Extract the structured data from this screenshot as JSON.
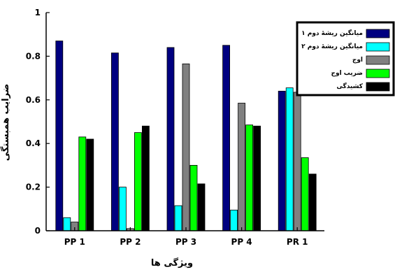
{
  "chart_data": {
    "type": "bar",
    "xlabel": "ویژگی ها",
    "ylabel": "ضرایب همبستگی",
    "ylim": [
      0,
      1
    ],
    "yticks": [
      "0",
      "0.2",
      "0.4",
      "0.6",
      "0.8",
      "1"
    ],
    "categories": [
      "PP 1",
      "PP 2",
      "PP 3",
      "PP 4",
      "PR 1"
    ],
    "grid": false,
    "legend_position": "top-right",
    "series": [
      {
        "name": "میانگین ریشهٔ دوم ۱",
        "color": "#000080",
        "values": [
          0.87,
          0.815,
          0.84,
          0.85,
          0.64
        ]
      },
      {
        "name": "میانگین ریشهٔ دوم ۲",
        "color": "#00FFFF",
        "values": [
          0.06,
          0.2,
          0.115,
          0.095,
          0.655
        ]
      },
      {
        "name": "اوج",
        "color": "#808080",
        "values": [
          0.04,
          0.01,
          0.765,
          0.585,
          0.635
        ]
      },
      {
        "name": "ضریب اوج",
        "color": "#00FF00",
        "values": [
          0.43,
          0.45,
          0.3,
          0.485,
          0.335
        ]
      },
      {
        "name": "کشیدگی",
        "color": "#000000",
        "values": [
          0.42,
          0.48,
          0.215,
          0.48,
          0.26
        ]
      }
    ]
  }
}
